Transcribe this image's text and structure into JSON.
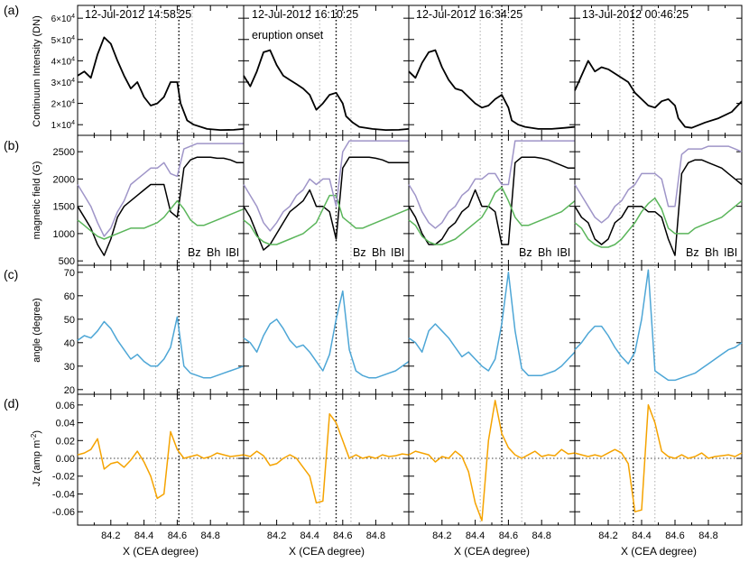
{
  "figure": {
    "row_labels": [
      "(a)",
      "(b)",
      "(c)",
      "(d)"
    ],
    "columns": [
      {
        "time": "12-Jul-2012 14:58:25",
        "note": ""
      },
      {
        "time": "12-Jul-2012 16:10:25",
        "note": "eruption onset"
      },
      {
        "time": "12-Jul-2012 16:34:25",
        "note": ""
      },
      {
        "time": "13-Jul-2012 00:46:25",
        "note": ""
      }
    ],
    "x_axis": {
      "label": "X (CEA degree)",
      "range": [
        84.0,
        85.0
      ],
      "ticks": [
        84.2,
        84.4,
        84.6,
        84.8
      ],
      "tick_labels": [
        "84.2",
        "84.4",
        "84.6",
        "84.8"
      ]
    }
  },
  "colors": {
    "black": "#000000",
    "bh": "#5ab55a",
    "babs": "#9f95c8",
    "angle": "#4da6d6",
    "jz": "#f5a300",
    "guide": "#999999"
  },
  "chart_data": [
    {
      "type": "line",
      "title": "Continuum Intensity",
      "ylabel": "Continuum Intensity (DN)",
      "ylim": [
        5000,
        66000
      ],
      "yticks": [
        10000,
        20000,
        30000,
        40000,
        50000,
        60000
      ],
      "ytick_labels": [
        {
          "mant": "1×10",
          "exp": "4"
        },
        {
          "mant": "2×10",
          "exp": "4"
        },
        {
          "mant": "3×10",
          "exp": "4"
        },
        {
          "mant": "4×10",
          "exp": "4"
        },
        {
          "mant": "5×10",
          "exp": "4"
        },
        {
          "mant": "6×10",
          "exp": "4"
        }
      ],
      "series": [
        {
          "name": "intensity",
          "color": "#000000",
          "x": [
            84.0,
            84.04,
            84.08,
            84.12,
            84.16,
            84.2,
            84.24,
            84.28,
            84.32,
            84.36,
            84.4,
            84.44,
            84.48,
            84.52,
            84.56,
            84.6,
            84.62,
            84.66,
            84.7,
            84.78,
            84.86,
            84.94,
            85.0
          ],
          "values": [
            [
              33000,
              35000,
              32000,
              43000,
              51000,
              48000,
              40000,
              33000,
              27000,
              30000,
              23000,
              19000,
              20000,
              23000,
              30000,
              30000,
              20000,
              12000,
              10000,
              8000,
              7500,
              7600,
              8000
            ],
            [
              33000,
              28000,
              35000,
              44000,
              45000,
              38000,
              33000,
              31000,
              29000,
              27000,
              24000,
              17000,
              20000,
              24000,
              25000,
              20000,
              14000,
              11000,
              9000,
              8000,
              7500,
              7600,
              8000
            ],
            [
              35000,
              32000,
              39000,
              44000,
              45000,
              37000,
              31000,
              27000,
              26000,
              23000,
              20000,
              18000,
              19000,
              22000,
              24000,
              18000,
              12000,
              10000,
              9000,
              8000,
              8000,
              8500,
              9000
            ],
            [
              26000,
              33000,
              40000,
              35000,
              37000,
              36000,
              34000,
              32000,
              30000,
              25000,
              22000,
              19000,
              18000,
              21000,
              22000,
              19000,
              13000,
              9000,
              8500,
              11000,
              13000,
              16000,
              21000
            ]
          ]
        }
      ],
      "guides": {
        "dotted_thin": [
          [
            84.47,
            84.69
          ],
          [
            84.46,
            84.65
          ],
          [
            84.43,
            84.68
          ],
          [
            84.27,
            84.48
          ]
        ],
        "dotted_thick": [
          84.61,
          84.56,
          84.56,
          84.35
        ]
      }
    },
    {
      "type": "line",
      "title": "Magnetic field",
      "ylabel": "magnetic field (G)",
      "ylim": [
        420,
        2800
      ],
      "yticks": [
        500,
        1000,
        1500,
        2000,
        2500
      ],
      "ytick_labels": [
        "500",
        "1000",
        "1500",
        "2000",
        "2500"
      ],
      "legend": [
        {
          "label": "Bz",
          "color": "#000000"
        },
        {
          "label": "Bh",
          "color": "#5ab55a"
        },
        {
          "label": "IBI",
          "color": "#9f95c8"
        }
      ],
      "x": [
        84.0,
        84.04,
        84.08,
        84.12,
        84.16,
        84.2,
        84.24,
        84.28,
        84.32,
        84.36,
        84.4,
        84.44,
        84.48,
        84.52,
        84.56,
        84.6,
        84.64,
        84.68,
        84.72,
        84.76,
        84.8,
        84.84,
        84.88,
        84.92,
        84.96,
        85.0
      ],
      "series": [
        {
          "name": "Bz",
          "color": "#000000",
          "values": [
            [
              1500,
              1300,
              1100,
              800,
              600,
              900,
              1300,
              1500,
              1600,
              1700,
              1800,
              1900,
              1900,
              1900,
              1400,
              1300,
              2200,
              2350,
              2400,
              2400,
              2400,
              2380,
              2380,
              2350,
              2300,
              2300
            ],
            [
              1500,
              1300,
              1000,
              700,
              800,
              1000,
              1200,
              1400,
              1500,
              1600,
              1800,
              1500,
              1500,
              1400,
              900,
              2200,
              2400,
              2400,
              2400,
              2400,
              2380,
              2350,
              2300,
              2300,
              2300,
              2300
            ],
            [
              1500,
              1300,
              1000,
              800,
              800,
              900,
              1100,
              1200,
              1400,
              1500,
              1800,
              1500,
              1500,
              1400,
              800,
              800,
              2300,
              2400,
              2400,
              2400,
              2380,
              2350,
              2300,
              2250,
              2200,
              2200
            ],
            [
              1500,
              1300,
              1200,
              900,
              800,
              900,
              1200,
              1300,
              1500,
              1500,
              1500,
              1400,
              1400,
              1300,
              900,
              600,
              2100,
              2300,
              2350,
              2350,
              2300,
              2250,
              2200,
              2100,
              2000,
              1900
            ]
          ]
        },
        {
          "name": "Bh",
          "color": "#5ab55a",
          "values": [
            [
              1250,
              1150,
              1050,
              950,
              900,
              950,
              1000,
              1050,
              1100,
              1100,
              1100,
              1150,
              1200,
              1300,
              1450,
              1600,
              1450,
              1250,
              1150,
              1150,
              1200,
              1250,
              1300,
              1350,
              1400,
              1450
            ],
            [
              1250,
              1150,
              950,
              850,
              800,
              800,
              850,
              900,
              950,
              1000,
              1100,
              1200,
              1450,
              1700,
              1700,
              1300,
              1200,
              1100,
              1100,
              1150,
              1200,
              1250,
              1300,
              1350,
              1400,
              1450
            ],
            [
              1250,
              1150,
              950,
              850,
              800,
              800,
              850,
              900,
              1000,
              1100,
              1200,
              1300,
              1500,
              1750,
              1850,
              1600,
              1300,
              1150,
              1150,
              1200,
              1250,
              1300,
              1350,
              1400,
              1500,
              1600
            ],
            [
              1200,
              1100,
              900,
              800,
              750,
              750,
              800,
              900,
              1050,
              1200,
              1400,
              1550,
              1650,
              1450,
              1100,
              1000,
              1000,
              1000,
              1100,
              1150,
              1200,
              1250,
              1300,
              1400,
              1500,
              1600
            ]
          ]
        },
        {
          "name": "IBI",
          "color": "#9f95c8",
          "values": [
            [
              1900,
              1700,
              1500,
              1200,
              950,
              1100,
              1400,
              1600,
              1900,
              2000,
              2100,
              2200,
              2200,
              2300,
              2100,
              2050,
              2550,
              2600,
              2650,
              2650,
              2650,
              2650,
              2650,
              2650,
              2650,
              2650
            ],
            [
              1900,
              1700,
              1500,
              1200,
              1050,
              1200,
              1400,
              1500,
              1700,
              1800,
              2000,
              1900,
              2000,
              2000,
              1500,
              2500,
              2700,
              2700,
              2700,
              2700,
              2700,
              2700,
              2700,
              2700,
              2700,
              2700
            ],
            [
              1900,
              1700,
              1400,
              1200,
              1100,
              1200,
              1400,
              1500,
              1700,
              1800,
              2000,
              2000,
              2100,
              2100,
              1900,
              1900,
              2700,
              2700,
              2700,
              2700,
              2700,
              2700,
              2700,
              2700,
              2700,
              2700
            ],
            [
              1900,
              1700,
              1500,
              1300,
              1200,
              1300,
              1500,
              1600,
              1800,
              1900,
              2100,
              2100,
              2100,
              2000,
              1500,
              1500,
              2450,
              2550,
              2550,
              2550,
              2600,
              2600,
              2600,
              2600,
              2550,
              2500
            ]
          ]
        }
      ],
      "guides": {
        "dotted_thin": [
          [
            84.47,
            84.69
          ],
          [
            84.46,
            84.65
          ],
          [
            84.43,
            84.68
          ],
          [
            84.27,
            84.48
          ]
        ],
        "dotted_thick": [
          84.61,
          84.56,
          84.56,
          84.35
        ]
      }
    },
    {
      "type": "line",
      "title": "Angle",
      "ylabel": "angle (degree)",
      "ylim": [
        18,
        73
      ],
      "yticks": [
        20,
        30,
        40,
        50,
        60,
        70
      ],
      "ytick_labels": [
        "20",
        "30",
        "40",
        "50",
        "60",
        "70"
      ],
      "x": [
        84.0,
        84.04,
        84.08,
        84.12,
        84.16,
        84.2,
        84.24,
        84.28,
        84.32,
        84.36,
        84.4,
        84.44,
        84.48,
        84.52,
        84.56,
        84.6,
        84.64,
        84.68,
        84.72,
        84.76,
        84.8,
        84.84,
        84.88,
        84.92,
        84.96,
        85.0
      ],
      "series": [
        {
          "name": "angle",
          "color": "#4da6d6",
          "values": [
            [
              41,
              43,
              42,
              45,
              49,
              46,
              41,
              37,
              33,
              35,
              32,
              30,
              30,
              33,
              38,
              51,
              30,
              27,
              26,
              25,
              25,
              26,
              27,
              28,
              29,
              30
            ],
            [
              42,
              40,
              36,
              43,
              48,
              50,
              46,
              41,
              38,
              39,
              36,
              32,
              28,
              35,
              50,
              62,
              37,
              28,
              26,
              25,
              25,
              26,
              27,
              28,
              30,
              32
            ],
            [
              42,
              40,
              36,
              45,
              48,
              45,
              42,
              38,
              34,
              36,
              33,
              30,
              28,
              33,
              48,
              70,
              45,
              29,
              26,
              26,
              26,
              27,
              28,
              30,
              33,
              36
            ],
            [
              37,
              40,
              44,
              47,
              47,
              43,
              38,
              34,
              31,
              36,
              50,
              71,
              28,
              26,
              24,
              24,
              25,
              26,
              27,
              29,
              31,
              33,
              35,
              37,
              38,
              40
            ]
          ]
        }
      ],
      "guides": {
        "dotted_thin": [
          [
            84.47,
            84.69
          ],
          [
            84.46,
            84.65
          ],
          [
            84.43,
            84.68
          ],
          [
            84.27,
            84.48
          ]
        ],
        "dotted_thick": [
          84.61,
          84.56,
          84.56,
          84.35
        ]
      }
    },
    {
      "type": "line",
      "title": "Jz",
      "ylabel": "Jz (amp m",
      "ylabel_exp": "-2",
      "ylabel_close": ")",
      "ylim": [
        -0.075,
        0.072
      ],
      "yticks": [
        -0.06,
        -0.04,
        -0.02,
        0.0,
        0.02,
        0.04,
        0.06
      ],
      "ytick_labels": [
        "-0.06",
        "-0.04",
        "-0.02",
        "0.00",
        "0.02",
        "0.04",
        "0.06"
      ],
      "zero_line": 0.0,
      "x": [
        84.0,
        84.04,
        84.08,
        84.12,
        84.16,
        84.2,
        84.24,
        84.28,
        84.32,
        84.36,
        84.4,
        84.44,
        84.48,
        84.52,
        84.56,
        84.6,
        84.64,
        84.68,
        84.72,
        84.76,
        84.8,
        84.84,
        84.88,
        84.92,
        84.96,
        85.0
      ],
      "series": [
        {
          "name": "Jz",
          "color": "#f5a300",
          "values": [
            [
              0.004,
              0.006,
              0.01,
              0.022,
              -0.012,
              -0.006,
              -0.004,
              -0.01,
              -0.002,
              0.008,
              -0.004,
              -0.02,
              -0.045,
              -0.04,
              0.03,
              0.01,
              0.0,
              0.002,
              0.004,
              0.0,
              0.002,
              0.006,
              0.004,
              0.002,
              0.003,
              0.004
            ],
            [
              0.004,
              0.002,
              0.008,
              0.003,
              -0.008,
              -0.006,
              0.0,
              0.004,
              0.0,
              -0.01,
              -0.02,
              -0.05,
              -0.048,
              0.05,
              0.04,
              0.02,
              0.0,
              0.004,
              0.0,
              0.002,
              0.0,
              0.004,
              0.002,
              0.003,
              0.005,
              0.004
            ],
            [
              0.004,
              0.008,
              0.006,
              0.004,
              -0.004,
              0.002,
              0.0,
              0.008,
              0.002,
              -0.015,
              -0.05,
              -0.07,
              0.02,
              0.065,
              0.028,
              0.012,
              0.004,
              0.0,
              0.004,
              0.008,
              0.002,
              0.004,
              0.003,
              0.01,
              0.005,
              0.006
            ],
            [
              0.006,
              0.004,
              0.002,
              0.004,
              0.002,
              0.006,
              0.01,
              0.006,
              -0.006,
              -0.06,
              -0.058,
              0.06,
              0.04,
              0.008,
              0.002,
              0.0,
              0.004,
              0.0,
              0.002,
              0.006,
              0.0,
              0.002,
              0.003,
              0.004,
              0.002,
              0.006
            ]
          ]
        }
      ],
      "guides": {
        "dotted_thin": [
          [
            84.47,
            84.69
          ],
          [
            84.46,
            84.65
          ],
          [
            84.43,
            84.68
          ],
          [
            84.27,
            84.48
          ]
        ],
        "dotted_thick": [
          84.61,
          84.56,
          84.56,
          84.35
        ]
      }
    }
  ]
}
